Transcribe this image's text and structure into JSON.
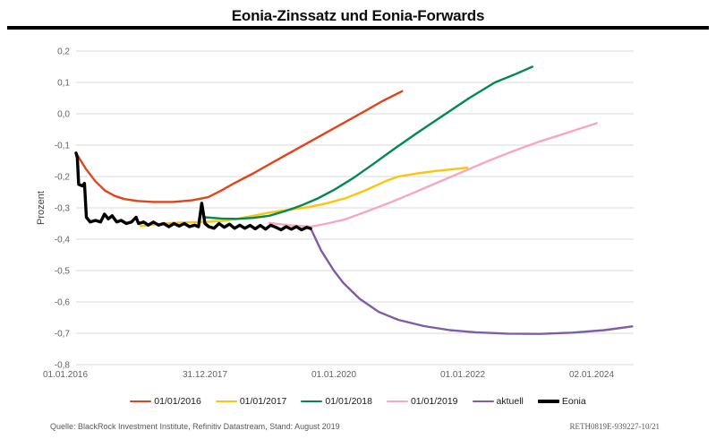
{
  "header": {
    "title": "Eonia-Zinssatz und Eonia-Forwards"
  },
  "chart_data": {
    "type": "line",
    "title": "Eonia-Zinssatz und Eonia-Forwards",
    "xlabel": "",
    "ylabel": "Prozent",
    "ylim": [
      -0.8,
      0.2
    ],
    "xlim": [
      2016.0,
      2024.65
    ],
    "grid": "horizontal-only",
    "legend_position": "bottom",
    "yticks": [
      {
        "value": 0.2,
        "label": "0,2"
      },
      {
        "value": 0.1,
        "label": "0,1"
      },
      {
        "value": 0.0,
        "label": "0,0"
      },
      {
        "value": -0.1,
        "label": "-0,1"
      },
      {
        "value": -0.2,
        "label": "-0,2"
      },
      {
        "value": -0.3,
        "label": "-0,3"
      },
      {
        "value": -0.4,
        "label": "-0,4"
      },
      {
        "value": -0.5,
        "label": "-0,5"
      },
      {
        "value": -0.6,
        "label": "-0,6"
      },
      {
        "value": -0.7,
        "label": "-0,7"
      },
      {
        "value": -0.8,
        "label": "-0,8"
      }
    ],
    "xticks": [
      {
        "pos": 2016.0,
        "label": "01.01.2016",
        "dx": -12
      },
      {
        "pos": 2018.0,
        "label": "31.12.2017",
        "dx": 0
      },
      {
        "pos": 2020.0,
        "label": "01.01.2020",
        "dx": 0
      },
      {
        "pos": 2022.0,
        "label": "01.01.2022",
        "dx": 0
      },
      {
        "pos": 2024.0,
        "label": "02.01.2024",
        "dx": 0
      }
    ],
    "series": [
      {
        "name": "01/01/2016",
        "color": "#e2431b",
        "width": 2.4,
        "points": [
          [
            2016.0,
            -0.125
          ],
          [
            2016.15,
            -0.175
          ],
          [
            2016.3,
            -0.215
          ],
          [
            2016.45,
            -0.245
          ],
          [
            2016.6,
            -0.262
          ],
          [
            2016.75,
            -0.272
          ],
          [
            2016.95,
            -0.278
          ],
          [
            2017.2,
            -0.281
          ],
          [
            2017.5,
            -0.281
          ],
          [
            2017.8,
            -0.276
          ],
          [
            2018.05,
            -0.266
          ],
          [
            2018.25,
            -0.245
          ],
          [
            2018.45,
            -0.222
          ],
          [
            2018.75,
            -0.19
          ],
          [
            2019.05,
            -0.155
          ],
          [
            2019.4,
            -0.115
          ],
          [
            2019.75,
            -0.075
          ],
          [
            2020.1,
            -0.035
          ],
          [
            2020.45,
            0.005
          ],
          [
            2020.75,
            0.04
          ],
          [
            2021.06,
            0.072
          ]
        ]
      },
      {
        "name": "01/01/2017",
        "color": "#fdc30d",
        "width": 2.4,
        "points": [
          [
            2017.0,
            -0.358
          ],
          [
            2017.25,
            -0.352
          ],
          [
            2017.5,
            -0.348
          ],
          [
            2017.75,
            -0.346
          ],
          [
            2018.0,
            -0.345
          ],
          [
            2018.25,
            -0.342
          ],
          [
            2018.5,
            -0.335
          ],
          [
            2018.75,
            -0.325
          ],
          [
            2019.0,
            -0.315
          ],
          [
            2019.3,
            -0.306
          ],
          [
            2019.6,
            -0.298
          ],
          [
            2019.9,
            -0.285
          ],
          [
            2020.2,
            -0.268
          ],
          [
            2020.5,
            -0.243
          ],
          [
            2020.8,
            -0.215
          ],
          [
            2021.0,
            -0.2
          ],
          [
            2021.3,
            -0.19
          ],
          [
            2021.6,
            -0.182
          ],
          [
            2022.07,
            -0.172
          ]
        ]
      },
      {
        "name": "01/01/2018",
        "color": "#018a4f",
        "width": 2.4,
        "points": [
          [
            2018.0,
            -0.33
          ],
          [
            2018.25,
            -0.334
          ],
          [
            2018.5,
            -0.335
          ],
          [
            2018.75,
            -0.332
          ],
          [
            2019.0,
            -0.325
          ],
          [
            2019.25,
            -0.31
          ],
          [
            2019.5,
            -0.292
          ],
          [
            2019.75,
            -0.27
          ],
          [
            2020.0,
            -0.243
          ],
          [
            2020.3,
            -0.205
          ],
          [
            2020.6,
            -0.162
          ],
          [
            2020.95,
            -0.11
          ],
          [
            2021.3,
            -0.06
          ],
          [
            2021.7,
            -0.005
          ],
          [
            2022.1,
            0.05
          ],
          [
            2022.5,
            0.1
          ],
          [
            2022.8,
            0.125
          ],
          [
            2023.08,
            0.15
          ]
        ]
      },
      {
        "name": "01/01/2019",
        "color": "#f7a6c3",
        "width": 2.4,
        "points": [
          [
            2019.0,
            -0.348
          ],
          [
            2019.3,
            -0.355
          ],
          [
            2019.64,
            -0.36
          ],
          [
            2019.9,
            -0.35
          ],
          [
            2020.2,
            -0.335
          ],
          [
            2020.5,
            -0.312
          ],
          [
            2020.85,
            -0.285
          ],
          [
            2021.2,
            -0.255
          ],
          [
            2021.6,
            -0.22
          ],
          [
            2022.0,
            -0.185
          ],
          [
            2022.4,
            -0.15
          ],
          [
            2022.8,
            -0.118
          ],
          [
            2023.2,
            -0.088
          ],
          [
            2023.6,
            -0.062
          ],
          [
            2024.08,
            -0.03
          ]
        ]
      },
      {
        "name": "aktuell",
        "color": "#7d5ca8",
        "width": 2.4,
        "points": [
          [
            2019.64,
            -0.365
          ],
          [
            2019.8,
            -0.435
          ],
          [
            2020.0,
            -0.5
          ],
          [
            2020.15,
            -0.54
          ],
          [
            2020.4,
            -0.59
          ],
          [
            2020.7,
            -0.632
          ],
          [
            2021.0,
            -0.657
          ],
          [
            2021.4,
            -0.677
          ],
          [
            2021.8,
            -0.69
          ],
          [
            2022.2,
            -0.697
          ],
          [
            2022.7,
            -0.701
          ],
          [
            2023.2,
            -0.702
          ],
          [
            2023.7,
            -0.698
          ],
          [
            2024.2,
            -0.69
          ],
          [
            2024.63,
            -0.678
          ]
        ]
      },
      {
        "name": "Eonia",
        "color": "#000000",
        "width": 3.4,
        "points": [
          [
            2016.0,
            -0.125
          ],
          [
            2016.02,
            -0.14
          ],
          [
            2016.04,
            -0.225
          ],
          [
            2016.1,
            -0.23
          ],
          [
            2016.13,
            -0.222
          ],
          [
            2016.16,
            -0.33
          ],
          [
            2016.22,
            -0.345
          ],
          [
            2016.3,
            -0.34
          ],
          [
            2016.38,
            -0.345
          ],
          [
            2016.44,
            -0.32
          ],
          [
            2016.5,
            -0.335
          ],
          [
            2016.56,
            -0.325
          ],
          [
            2016.63,
            -0.345
          ],
          [
            2016.7,
            -0.34
          ],
          [
            2016.78,
            -0.35
          ],
          [
            2016.86,
            -0.345
          ],
          [
            2016.93,
            -0.33
          ],
          [
            2016.97,
            -0.35
          ],
          [
            2017.05,
            -0.345
          ],
          [
            2017.12,
            -0.355
          ],
          [
            2017.2,
            -0.345
          ],
          [
            2017.28,
            -0.355
          ],
          [
            2017.36,
            -0.35
          ],
          [
            2017.44,
            -0.36
          ],
          [
            2017.52,
            -0.35
          ],
          [
            2017.6,
            -0.358
          ],
          [
            2017.68,
            -0.35
          ],
          [
            2017.76,
            -0.36
          ],
          [
            2017.84,
            -0.355
          ],
          [
            2017.9,
            -0.36
          ],
          [
            2017.95,
            -0.285
          ],
          [
            2018.0,
            -0.35
          ],
          [
            2018.06,
            -0.36
          ],
          [
            2018.14,
            -0.365
          ],
          [
            2018.22,
            -0.35
          ],
          [
            2018.3,
            -0.362
          ],
          [
            2018.38,
            -0.352
          ],
          [
            2018.46,
            -0.365
          ],
          [
            2018.54,
            -0.355
          ],
          [
            2018.62,
            -0.365
          ],
          [
            2018.7,
            -0.356
          ],
          [
            2018.78,
            -0.367
          ],
          [
            2018.86,
            -0.356
          ],
          [
            2018.94,
            -0.368
          ],
          [
            2019.02,
            -0.355
          ],
          [
            2019.1,
            -0.362
          ],
          [
            2019.18,
            -0.37
          ],
          [
            2019.26,
            -0.36
          ],
          [
            2019.34,
            -0.368
          ],
          [
            2019.42,
            -0.36
          ],
          [
            2019.5,
            -0.37
          ],
          [
            2019.58,
            -0.362
          ],
          [
            2019.64,
            -0.366
          ]
        ]
      }
    ]
  },
  "legend": {
    "items": [
      {
        "label": "01/01/2016",
        "color": "#e2431b",
        "thick": false
      },
      {
        "label": "01/01/2017",
        "color": "#fdc30d",
        "thick": false
      },
      {
        "label": "01/01/2018",
        "color": "#018a4f",
        "thick": false
      },
      {
        "label": "01/01/2019",
        "color": "#f7a6c3",
        "thick": false
      },
      {
        "label": "aktuell",
        "color": "#7d5ca8",
        "thick": false
      },
      {
        "label": "Eonia",
        "color": "#000000",
        "thick": true
      }
    ]
  },
  "footer": {
    "source": "Quelle: BlackRock Investment Institute, Refinitiv Datastream, Stand: August 2019",
    "ref": "RETH0819E-939227-10/21"
  },
  "style": {
    "gridline_color": "#d9d9d9",
    "tick_label_color": "#636363",
    "axis_title_color": "#404040"
  }
}
